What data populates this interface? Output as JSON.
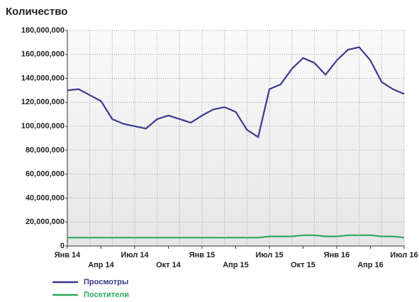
{
  "chart_data": {
    "type": "line",
    "title": "Количество",
    "categories": [
      "Янв 14",
      null,
      null,
      "Апр 14",
      null,
      null,
      "Июл 14",
      null,
      null,
      "Окт 14",
      null,
      null,
      "Янв 15",
      null,
      null,
      "Апр 15",
      null,
      null,
      "Июл 15",
      null,
      null,
      "Окт 15",
      null,
      null,
      "Янв 16",
      null,
      null,
      "Апр 16",
      null,
      null,
      "Июл 16"
    ],
    "series": [
      {
        "name": "Просмотры",
        "color": "#3b3a8e",
        "values": [
          130000000,
          131000000,
          126000000,
          121000000,
          106000000,
          102000000,
          100000000,
          98000000,
          106000000,
          109000000,
          106000000,
          103000000,
          109000000,
          114000000,
          116000000,
          112000000,
          97000000,
          91000000,
          131000000,
          135000000,
          148000000,
          157000000,
          153000000,
          143000000,
          155000000,
          164000000,
          166000000,
          155000000,
          137000000,
          131000000,
          127000000
        ]
      },
      {
        "name": "Посетители",
        "color": "#2eaa5a",
        "values": [
          7000000,
          7000000,
          7000000,
          7000000,
          7000000,
          7000000,
          7000000,
          7000000,
          7000000,
          7000000,
          7000000,
          7000000,
          7000000,
          7000000,
          7000000,
          7000000,
          7000000,
          7000000,
          8000000,
          8000000,
          8000000,
          9000000,
          9000000,
          8000000,
          8000000,
          9000000,
          9000000,
          9000000,
          8000000,
          8000000,
          7000000
        ]
      }
    ],
    "ylim": [
      0,
      180000000
    ],
    "yticks": [
      {
        "value": 0,
        "label": "0"
      },
      {
        "value": 20000000,
        "label": "20,000,000"
      },
      {
        "value": 40000000,
        "label": "40,000,000"
      },
      {
        "value": 60000000,
        "label": "60,000,000"
      },
      {
        "value": 80000000,
        "label": "80,000,000"
      },
      {
        "value": 100000000,
        "label": "100,000,000"
      },
      {
        "value": 120000000,
        "label": "120,000,000"
      },
      {
        "value": 140000000,
        "label": "140,000,000"
      },
      {
        "value": 160000000,
        "label": "160,000,000"
      },
      {
        "value": 180000000,
        "label": "180,000,000"
      }
    ],
    "grid": true,
    "legend": "bottom-left"
  }
}
